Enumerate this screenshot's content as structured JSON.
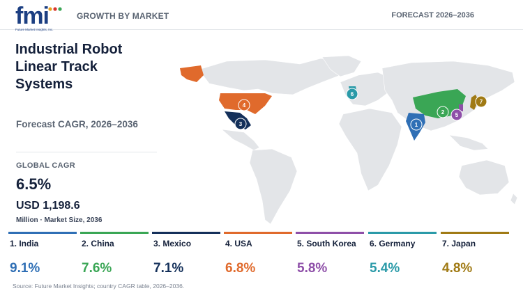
{
  "header": {
    "logo_text": "fmi",
    "logo_subtext": "Future Market Insights, Inc.",
    "title": "GROWTH BY MARKET",
    "forecast": "FORECAST 2026–2036"
  },
  "report": {
    "title": "Industrial Robot Linear Track Systems",
    "subtitle": "Forecast CAGR, 2026–2036",
    "global_cagr_label": "GLOBAL CAGR",
    "global_cagr_value": "6.5%",
    "market_size_value": "USD 1,198.6",
    "market_size_note": "Million · Market Size, 2036"
  },
  "countries": [
    {
      "rank": "1",
      "label": "1. India",
      "cagr": "9.1%",
      "color": "#2f6fb5"
    },
    {
      "rank": "2",
      "label": "2. China",
      "cagr": "7.6%",
      "color": "#3aa655"
    },
    {
      "rank": "3",
      "label": "3. Mexico",
      "cagr": "7.1%",
      "color": "#14305a"
    },
    {
      "rank": "4",
      "label": "4. USA",
      "cagr": "6.8%",
      "color": "#e06a2c"
    },
    {
      "rank": "5",
      "label": "5. South Korea",
      "cagr": "5.8%",
      "color": "#8e4fa8"
    },
    {
      "rank": "6",
      "label": "6. Germany",
      "cagr": "5.4%",
      "color": "#2a9aa8"
    },
    {
      "rank": "7",
      "label": "7. Japan",
      "cagr": "4.8%",
      "color": "#a07a14"
    }
  ],
  "source": "Source: Future Market Insights; country CAGR table, 2026–2036."
}
